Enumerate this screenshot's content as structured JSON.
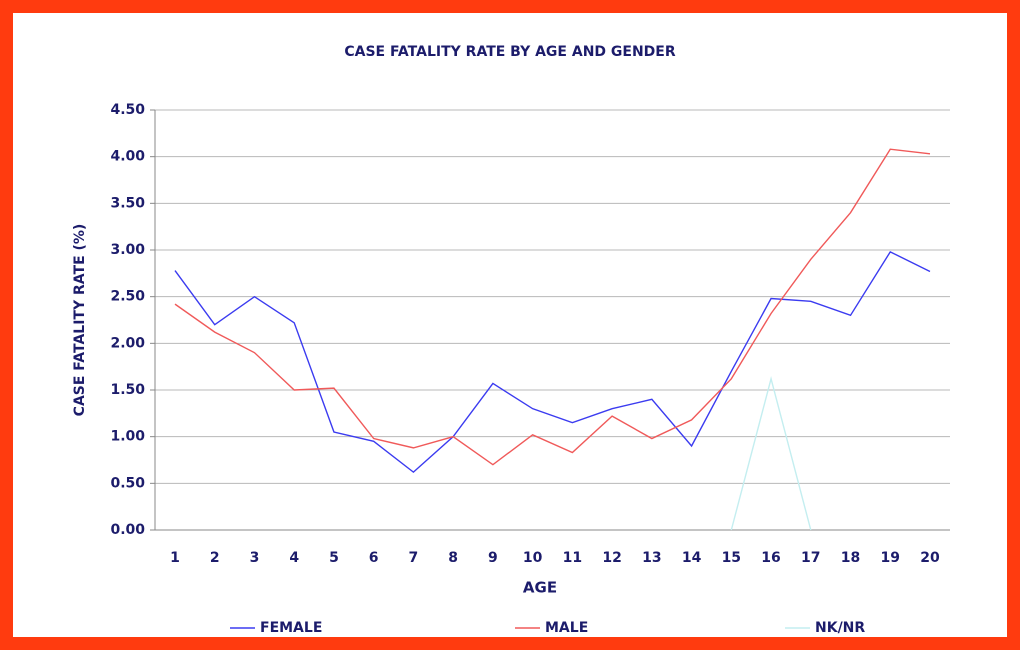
{
  "chart_data": {
    "type": "line",
    "title": "CASE FATALITY RATE BY AGE AND GENDER",
    "x_label": "AGE",
    "y_label": "CASE FATALITY RATE (%)",
    "categories": [
      "1",
      "2",
      "3",
      "4",
      "5",
      "6",
      "7",
      "8",
      "9",
      "10",
      "11",
      "12",
      "13",
      "14",
      "15",
      "16",
      "17",
      "18",
      "19",
      "20"
    ],
    "series": [
      {
        "name": "FEMALE",
        "color": "#3b3bf0",
        "values": [
          2.78,
          2.2,
          2.5,
          2.22,
          1.05,
          0.95,
          0.62,
          1.0,
          1.57,
          1.3,
          1.15,
          1.3,
          1.4,
          0.9,
          1.7,
          2.48,
          2.45,
          2.3,
          2.98,
          2.77
        ]
      },
      {
        "name": "MALE",
        "color": "#f05a5a",
        "values": [
          2.42,
          2.12,
          1.9,
          1.5,
          1.52,
          0.98,
          0.88,
          1.0,
          0.7,
          1.02,
          0.83,
          1.22,
          0.98,
          1.18,
          1.62,
          2.32,
          2.9,
          3.4,
          4.08,
          4.03
        ]
      },
      {
        "name": "NK/NR",
        "color": "#c4eef0",
        "values": [
          null,
          null,
          null,
          null,
          null,
          null,
          null,
          null,
          null,
          null,
          null,
          null,
          null,
          null,
          0.0,
          1.62,
          0.0,
          null,
          null,
          null
        ]
      }
    ],
    "ylim": [
      0,
      4.5
    ],
    "yticks": [
      {
        "value": 0,
        "label": "0.00"
      },
      {
        "value": 0.5,
        "label": "0.50"
      },
      {
        "value": 1,
        "label": "1.00"
      },
      {
        "value": 1.5,
        "label": "1.50"
      },
      {
        "value": 2,
        "label": "2.00"
      },
      {
        "value": 2.5,
        "label": "2.50"
      },
      {
        "value": 3,
        "label": "3.00"
      },
      {
        "value": 3.5,
        "label": "3.50"
      },
      {
        "value": 4,
        "label": "4.00"
      },
      {
        "value": 4.5,
        "label": "4.50"
      }
    ],
    "grid": true,
    "legend": "bottom"
  }
}
